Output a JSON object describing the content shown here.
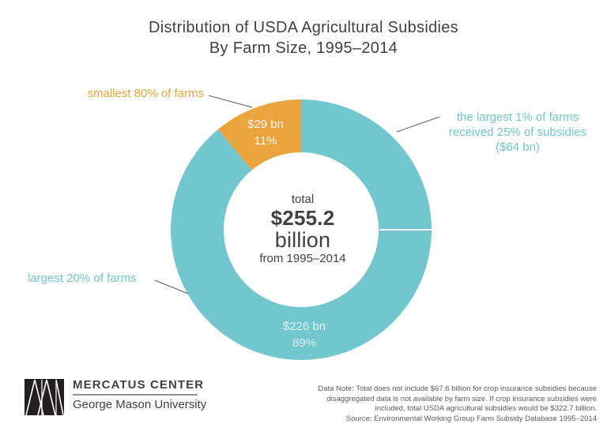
{
  "title": {
    "line1": "Distribution of USDA Agricultural Subsidies",
    "line2": "By Farm Size, 1995–2014"
  },
  "chart_data": {
    "type": "donut",
    "title": "Distribution of USDA Agricultural Subsidies By Farm Size, 1995–2014",
    "total": {
      "label": "total",
      "value": "$255.2",
      "unit": "billion",
      "period": "from 1995–2014"
    },
    "segments": [
      {
        "category": "smallest 80% of farms",
        "amount_bn": 29,
        "amount_label": "$29 bn",
        "percent": 11,
        "percent_label": "11%",
        "color": "#e9a43e"
      },
      {
        "category": "largest 20% of farms",
        "amount_bn": 226,
        "amount_label": "$226 bn",
        "percent": 89,
        "percent_label": "89%",
        "color": "#72c6cd"
      }
    ],
    "subdivision": {
      "category": "largest 1% of farms",
      "percent_of_subsidies": 25,
      "amount_bn": 64,
      "callout_line1": "the largest 1% of farms",
      "callout_line2": "received 25% of subsidies",
      "callout_line3": "($64 bn)"
    },
    "colors": {
      "orange": "#e9a43e",
      "teal": "#72c6cd",
      "text_dark": "#414042",
      "leader_line": "#58595b"
    }
  },
  "footer": {
    "logo": {
      "name": "MERCATUS CENTER",
      "university": "George Mason University"
    },
    "note_lines": [
      "Data Note: Total does not include $67.6 billion for crop insurance subsidies because",
      "disaggregated data is not available by farm size. If crop insurance subsidies were",
      "included, total USDA agricultural subsidies would be $322.7 billion.",
      "Source: Environmental Working Group Farm Subsidy Database 1995–2014"
    ]
  }
}
